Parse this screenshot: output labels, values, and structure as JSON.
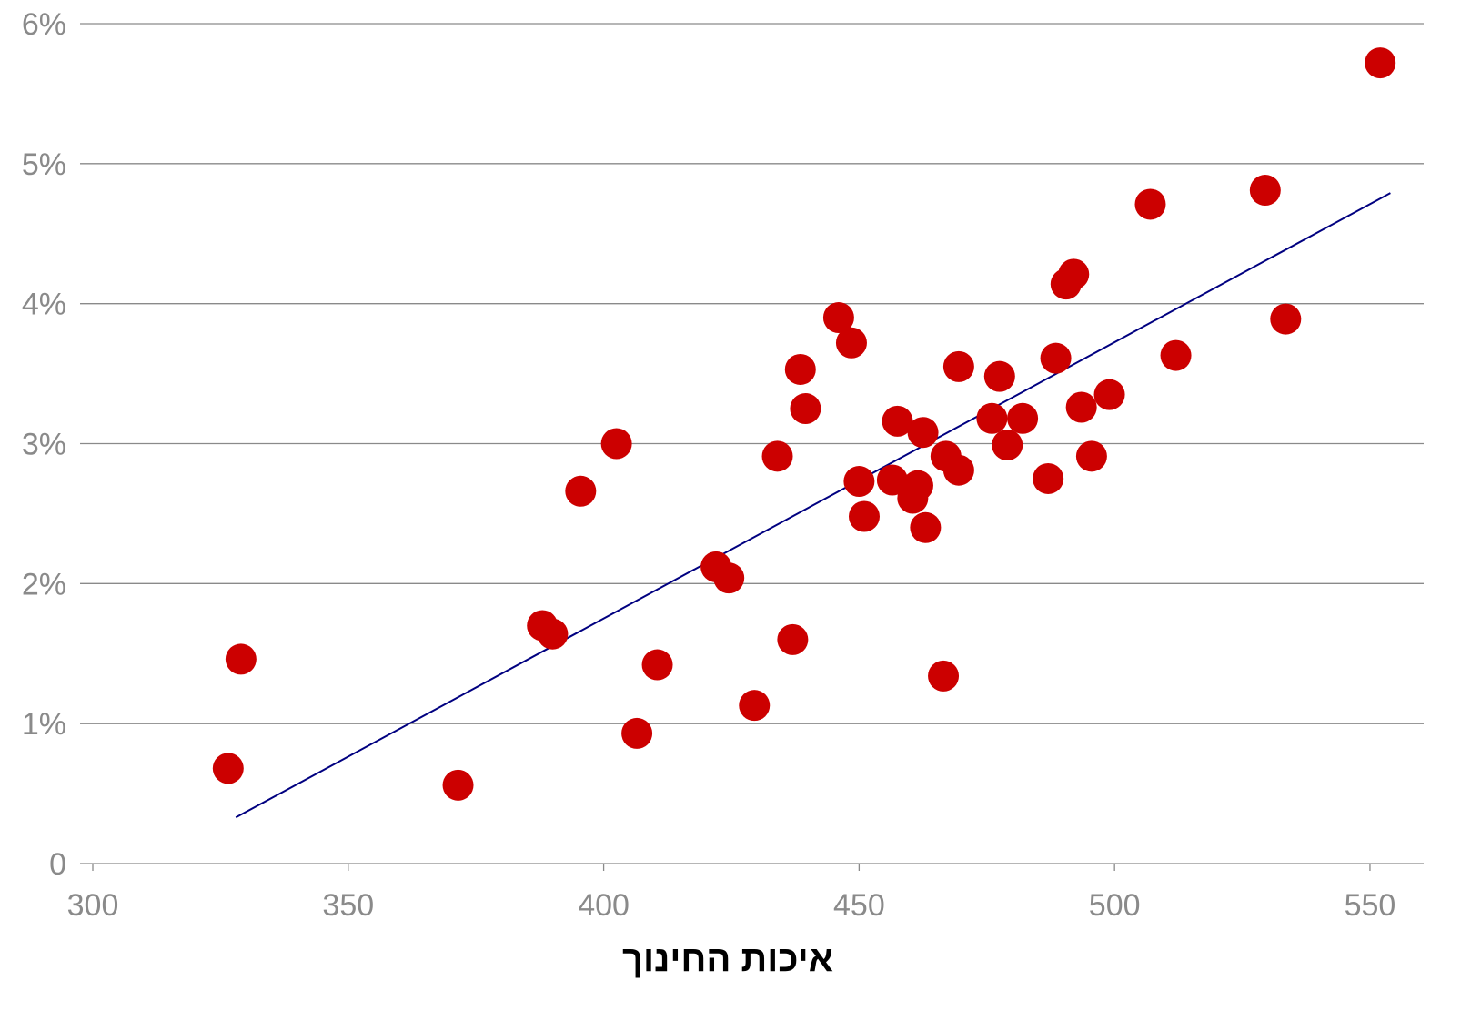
{
  "chart_data": {
    "type": "scatter",
    "title": "",
    "xlabel": "איכות החינוך",
    "ylabel": "",
    "xlim": [
      297,
      562
    ],
    "ylim": [
      0,
      6
    ],
    "x_ticks": [
      300,
      350,
      400,
      450,
      500,
      550
    ],
    "x_tick_labels": [
      "300",
      "350",
      "400",
      "450",
      "500",
      "550"
    ],
    "y_ticks": [
      0,
      1,
      2,
      3,
      4,
      5,
      6
    ],
    "y_tick_labels": [
      "0",
      "1%",
      "2%",
      "3%",
      "4%",
      "5%",
      "6%"
    ],
    "grid": "horizontal",
    "series": [
      {
        "points": [
          [
            326.5,
            0.68
          ],
          [
            329.0,
            1.46
          ],
          [
            371.5,
            0.56
          ],
          [
            388.0,
            1.7
          ],
          [
            390.0,
            1.64
          ],
          [
            395.5,
            2.66
          ],
          [
            402.5,
            3.0
          ],
          [
            406.5,
            0.93
          ],
          [
            410.5,
            1.42
          ],
          [
            422.0,
            2.12
          ],
          [
            424.5,
            2.04
          ],
          [
            429.5,
            1.13
          ],
          [
            434.0,
            2.91
          ],
          [
            437.0,
            1.6
          ],
          [
            438.5,
            3.53
          ],
          [
            439.5,
            3.25
          ],
          [
            446.0,
            3.9
          ],
          [
            448.5,
            3.72
          ],
          [
            450.0,
            2.73
          ],
          [
            451.0,
            2.48
          ],
          [
            456.5,
            2.74
          ],
          [
            457.5,
            3.16
          ],
          [
            460.5,
            2.61
          ],
          [
            461.5,
            2.7
          ],
          [
            462.5,
            3.08
          ],
          [
            463.0,
            2.4
          ],
          [
            466.5,
            1.34
          ],
          [
            467.0,
            2.91
          ],
          [
            469.5,
            3.55
          ],
          [
            469.5,
            2.81
          ],
          [
            476.0,
            3.18
          ],
          [
            477.5,
            3.48
          ],
          [
            479.0,
            2.99
          ],
          [
            482.0,
            3.18
          ],
          [
            487.0,
            2.75
          ],
          [
            488.5,
            3.61
          ],
          [
            490.5,
            4.14
          ],
          [
            492.0,
            4.21
          ],
          [
            493.5,
            3.26
          ],
          [
            495.5,
            2.91
          ],
          [
            499.0,
            3.35
          ],
          [
            507.0,
            4.71
          ],
          [
            512.0,
            3.63
          ],
          [
            529.5,
            4.81
          ],
          [
            533.5,
            3.89
          ],
          [
            552.0,
            5.72
          ]
        ]
      }
    ],
    "trendline": {
      "x": [
        328,
        554
      ],
      "y": [
        0.33,
        4.79
      ]
    },
    "colors": {
      "points": "#cc0000",
      "trendline": "#000080",
      "grid": "#8a8a8a",
      "ticks": "#8a8a8a"
    }
  }
}
